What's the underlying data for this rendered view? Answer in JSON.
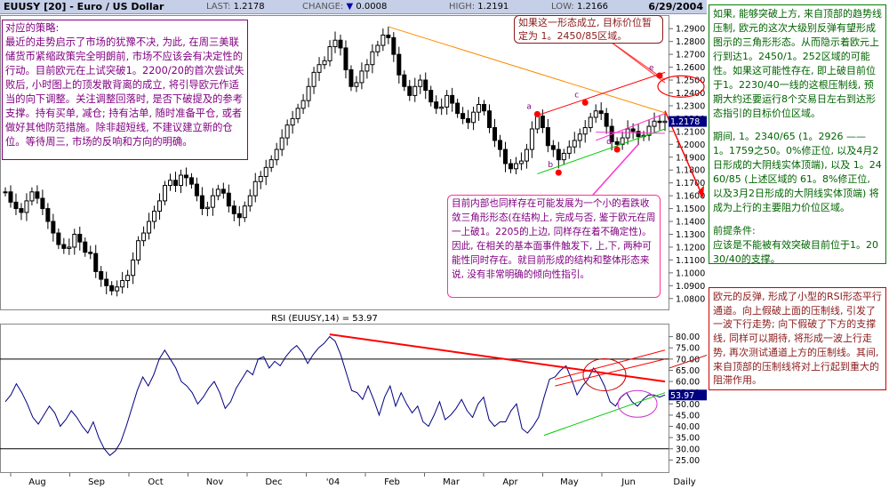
{
  "header": {
    "title": "EUUSY [20] - Euro / US Dollar",
    "last_label": "LAST:",
    "last_value": "1.2178",
    "change_label": "CHANGE:",
    "change_icon": "down-triangle",
    "change_value": "0.0008",
    "high_label": "HIGH:",
    "high_value": "1.2191",
    "low_label": "LOW:",
    "low_value": "1.2166",
    "date": "6/29/2004"
  },
  "annotations": {
    "left": [
      "对应的策略:",
      "最近的走势启示了市场的犹豫不决, 为此, 在周三美联储货币紧缩政策完全明朗前, 市场不应该会有决定性的行动。目前欧元在上试突破1。2200/20的首次尝试失败后, 小时图上的顶发散背离的成立, 将引导欧元作适当的向下调整。关注调整回落时, 是否下破提及的参考支撑。持有买单, 减仓; 持有沽单, 随时准备平仓, 或者做好其他防范措施。除非超短线, 不建议建立新的仓位。等待周三, 市场的反响和方向的明确。"
    ],
    "top": "如果这一形态成立, 目标价位暂定为 1。2450/85区域。",
    "mid": [
      "目前内部也同样存在可能发展为一个小的看跌收敛三角形形态(在结构上, 完成与否, 鉴于欧元在周一上破1。2205的上边, 同样存在着不确定性)。",
      "因此, 在相关的基本面事件触发下, 上,下, 两种可能性同时存在。就目前形成的结构和整体形态来说, 没有非常明确的倾向性指引。"
    ],
    "right_top": [
      "如果, 能够突破上方, 来自顶部的趋势线压制, 欧元的这次大级别反弹有望形成图示的三角形形态。从而隐示着欧元上行到达1。2450/1。252区域的可能性。如果这可能性存在, 即上破目前位于1。2230/40一线的这根压制线, 预期大约还要运行8个交易日左右到达形态指引的目标价位区域。",
      "期间, 1。2340/65 (1。2926 —— 1。1759之50。0%修正位, 以及4月2日形成的大阴线实体顶端), 以及 1。2460/85 (上述区域的 61。8%修正位, 以及3月2日形成的大阴线实体顶端) 将成为上行的主要阻力价位区域。",
      "前提条件:",
      "应该是不能被有效突破目前位于1。2030/40的支撑。"
    ],
    "right_bottom": "欧元的反弹, 形成了小型的RSI形态平行通道。向上假破上面的压制线, 引发了一波下行走势; 向下假破了下方的支撑线, 同样可以期待, 将形成一波上行走势, 再次测试通道上方的压制线。其间, 来自顶部的压制线将对上行起到重大的阻滞作用。"
  },
  "rsi_title": "RSI (EUUSY,14) = 53.97",
  "chart_data": [
    {
      "type": "candlestick",
      "title": "EUUSY [20] - Euro / US Dollar",
      "ylim": [
        1.075,
        1.295
      ],
      "ytick_labels": [
        "1.0800",
        "1.0900",
        "1.1000",
        "1.1100",
        "1.1200",
        "1.1300",
        "1.1400",
        "1.1500",
        "1.1600",
        "1.1700",
        "1.1800",
        "1.1900",
        "1.2000",
        "1.2100",
        "1.2200",
        "1.2300",
        "1.2400",
        "1.2500",
        "1.2600",
        "1.2700",
        "1.2800",
        "1.2900"
      ],
      "yticks": [
        1.08,
        1.09,
        1.1,
        1.11,
        1.12,
        1.13,
        1.14,
        1.15,
        1.16,
        1.17,
        1.18,
        1.19,
        1.2,
        1.21,
        1.22,
        1.23,
        1.24,
        1.25,
        1.26,
        1.27,
        1.28,
        1.29
      ],
      "last_price_label": "1.2178",
      "close_path": [
        1.163,
        1.155,
        1.15,
        1.147,
        1.156,
        1.163,
        1.158,
        1.15,
        1.14,
        1.131,
        1.122,
        1.119,
        1.12,
        1.13,
        1.124,
        1.116,
        1.115,
        1.101,
        1.095,
        1.09,
        1.086,
        1.089,
        1.094,
        1.098,
        1.11,
        1.125,
        1.131,
        1.14,
        1.148,
        1.156,
        1.168,
        1.172,
        1.168,
        1.176,
        1.174,
        1.169,
        1.16,
        1.15,
        1.151,
        1.16,
        1.165,
        1.162,
        1.152,
        1.146,
        1.143,
        1.152,
        1.16,
        1.171,
        1.175,
        1.182,
        1.188,
        1.196,
        1.205,
        1.215,
        1.22,
        1.228,
        1.234,
        1.245,
        1.256,
        1.262,
        1.265,
        1.276,
        1.281,
        1.275,
        1.258,
        1.245,
        1.248,
        1.257,
        1.262,
        1.272,
        1.277,
        1.285,
        1.283,
        1.27,
        1.254,
        1.245,
        1.238,
        1.245,
        1.25,
        1.242,
        1.233,
        1.228,
        1.229,
        1.238,
        1.232,
        1.224,
        1.22,
        1.217,
        1.225,
        1.231,
        1.226,
        1.213,
        1.203,
        1.196,
        1.185,
        1.181,
        1.185,
        1.187,
        1.196,
        1.212,
        1.222,
        1.213,
        1.199,
        1.196,
        1.188,
        1.193,
        1.198,
        1.203,
        1.208,
        1.213,
        1.221,
        1.226,
        1.224,
        1.214,
        1.202,
        1.2,
        1.205,
        1.212,
        1.21,
        1.206,
        1.207,
        1.214,
        1.218,
        1.217,
        1.218
      ],
      "points": [
        {
          "label": "a",
          "value": 1.2235
        },
        {
          "label": "b",
          "value": 1.178
        },
        {
          "label": "c",
          "value": 1.2325
        },
        {
          "label": "d",
          "value": 1.196
        },
        {
          "label": "e",
          "value": 1.2535
        }
      ]
    },
    {
      "type": "line",
      "title": "RSI (EUUSY,14) = 53.97",
      "ylim": [
        20,
        85
      ],
      "ytick_labels": [
        "80.00",
        "75.00",
        "70.00",
        "65.00",
        "60.00",
        "55.00",
        "50.00",
        "45.00",
        "40.00",
        "35.00",
        "30.00",
        "25.00"
      ],
      "yticks": [
        80,
        75,
        70,
        65,
        60,
        55,
        50,
        45,
        40,
        35,
        30,
        25
      ],
      "hlines": [
        70,
        30
      ],
      "last_value_label": "53.97",
      "values": [
        51,
        54,
        59,
        55,
        50,
        44,
        41,
        45,
        49,
        46,
        40,
        43,
        47,
        44,
        40,
        37,
        42,
        35,
        30,
        27,
        29,
        33,
        40,
        48,
        56,
        62,
        58,
        63,
        70,
        74,
        70,
        66,
        60,
        58,
        55,
        50,
        53,
        57,
        60,
        55,
        48,
        51,
        57,
        61,
        65,
        63,
        70,
        71,
        66,
        69,
        67,
        71,
        74,
        76,
        73,
        68,
        72,
        75,
        77,
        80,
        78,
        72,
        64,
        56,
        55,
        52,
        58,
        52,
        45,
        53,
        58,
        49,
        55,
        50,
        46,
        49,
        42,
        40,
        45,
        51,
        43,
        45,
        48,
        52,
        47,
        44,
        50,
        53,
        43,
        40,
        42,
        42,
        47,
        50,
        39,
        37,
        40,
        44,
        53,
        61,
        62,
        65,
        67,
        61,
        54,
        58,
        61,
        66,
        63,
        58,
        51,
        49,
        53,
        55,
        51,
        49,
        52,
        54,
        54,
        53,
        54
      ]
    }
  ],
  "xaxis": {
    "labels": [
      "Aug",
      "Sep",
      "Oct",
      "Nov",
      "Dec",
      "'04",
      "Feb",
      "Mar",
      "Apr",
      "May",
      "Jun",
      "Daily"
    ]
  },
  "colors": {
    "candle": "#000000",
    "up_trend": "#ff0000",
    "down_trend": "#ff8c00",
    "support": "#00cc00",
    "header_bg": "#c6cfe8",
    "last_label_bg": "#000080"
  }
}
